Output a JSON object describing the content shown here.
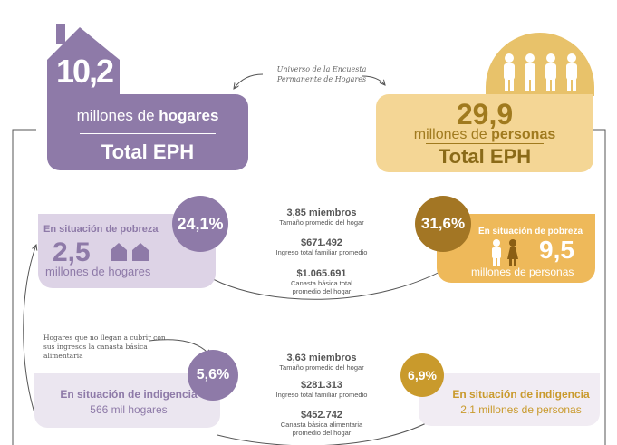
{
  "main_left": {
    "number": "10,2",
    "unit_prefix": "millones de ",
    "unit_bold": "hogares",
    "caption": "Total EPH"
  },
  "universe_note": {
    "line1": "Universo de la Encuesta",
    "line2": "Permanente de Hogares"
  },
  "main_right": {
    "number": "29,9",
    "unit_prefix": "millones de ",
    "unit_bold": "personas",
    "caption": "Total EPH"
  },
  "poverty": {
    "left": {
      "title": "En situación de pobreza",
      "number": "2,5",
      "unit": "millones de hogares",
      "percent": "24,1%"
    },
    "right": {
      "title": "En situación de pobreza",
      "number": "9,5",
      "unit": "millones de personas",
      "percent": "31,6%"
    },
    "stats": [
      {
        "value": "3,85 miembros",
        "desc1": "Tamaño promedio del hogar",
        "desc2": ""
      },
      {
        "value": "$671.492",
        "desc1": "Ingreso total familiar promedio",
        "desc2": ""
      },
      {
        "value": "$1.065.691",
        "desc1": "Canasta básica total",
        "desc2": "promedio del hogar"
      }
    ]
  },
  "note": {
    "line1": "Hogares que no llegan a cubrir con",
    "line2": "sus ingresos la canasta básica",
    "line3": "alimentaria"
  },
  "indigence": {
    "left": {
      "title": "En situación de indigencia",
      "unit": "566 mil hogares",
      "percent": "5,6%"
    },
    "right": {
      "title": "En situación de indigencia",
      "unit": "2,1 millones de personas",
      "percent": "6,9%"
    },
    "stats": [
      {
        "value": "3,63 miembros",
        "desc1": "Tamaño promedio del hogar",
        "desc2": ""
      },
      {
        "value": "$281.313",
        "desc1": "Ingreso total familiar promedio",
        "desc2": ""
      },
      {
        "value": "$452.742",
        "desc1": "Canasta básica alimentaria",
        "desc2": "promedio del hogar"
      }
    ]
  },
  "colors": {
    "purple": "#8e7aa8",
    "light_purple": "#ddd3e6",
    "gold": "#f4d695",
    "dark_gold": "#a37624",
    "orange": "#eeb95a"
  }
}
